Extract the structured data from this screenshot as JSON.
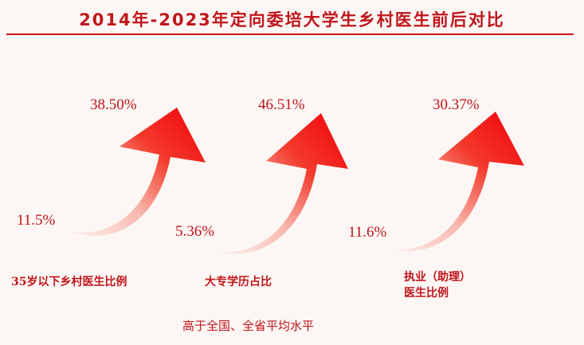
{
  "title": "2014年-2023年定向委培大学生乡村医生前后对比",
  "metrics": [
    {
      "before": "11.5%",
      "after": "38.50%",
      "label_lines": [
        "35岁以下乡村医生比例"
      ]
    },
    {
      "before": "5.36%",
      "after": "46.51%",
      "label_lines": [
        "大专学历占比"
      ]
    },
    {
      "before": "11.6%",
      "after": "30.37%",
      "label_lines": [
        "执业（助理）",
        "医生比例"
      ]
    }
  ],
  "footnote": "高于全国、全省平均水平",
  "colors": {
    "accent": "#c0141a",
    "arrow_head": "#f2000a",
    "arrow_tail": "#fbe3de",
    "background": "#fcf7f4"
  }
}
